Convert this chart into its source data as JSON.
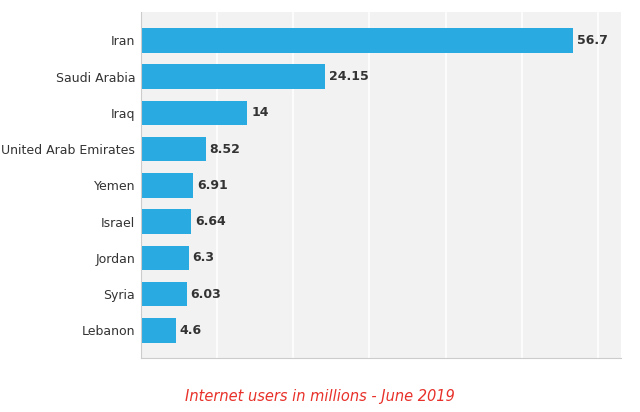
{
  "countries": [
    "Lebanon",
    "Syria",
    "Jordan",
    "Israel",
    "Yemen",
    "United Arab Emirates",
    "Iraq",
    "Saudi Arabia",
    "Iran"
  ],
  "values": [
    4.6,
    6.03,
    6.3,
    6.64,
    6.91,
    8.52,
    14,
    24.15,
    56.7
  ],
  "labels": [
    "4.6",
    "6.03",
    "6.3",
    "6.64",
    "6.91",
    "8.52",
    "14",
    "24.15",
    "56.7"
  ],
  "bar_color": "#29abe2",
  "background_color": "#ffffff",
  "plot_bg_color": "#f2f2f2",
  "title": "Internet users in millions - June 2019",
  "title_color": "#e8312a",
  "title_fontsize": 10.5,
  "label_fontsize": 9,
  "value_fontsize": 9,
  "xlim": [
    0,
    63
  ],
  "bar_height": 0.68,
  "grid_color": "#ffffff",
  "label_color": "#333333",
  "value_color": "#333333",
  "spine_color": "#cccccc"
}
